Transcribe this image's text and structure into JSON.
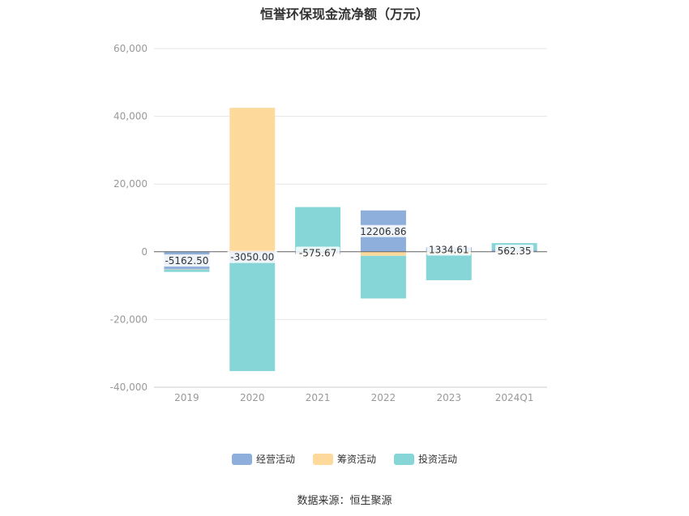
{
  "chart_data": {
    "type": "bar",
    "stacked": true,
    "title": "恒誉环保现金流净额（万元）",
    "categories": [
      "2019",
      "2020",
      "2021",
      "2022",
      "2023",
      "2024Q1"
    ],
    "series": [
      {
        "name": "经营活动",
        "color": "#8eaedb",
        "values": [
          -5162.5,
          -3050.0,
          -575.67,
          12206.86,
          1334.61,
          562.35
        ]
      },
      {
        "name": "筹资活动",
        "color": "#fdd99b",
        "values": [
          -100,
          42500,
          -300,
          -1200,
          -600,
          -50
        ]
      },
      {
        "name": "投资活动",
        "color": "#86d6d8",
        "values": [
          -700,
          -32200,
          13200,
          -12600,
          -7800,
          2000
        ]
      }
    ],
    "data_labels": [
      "-5162.50",
      "-3050.00",
      "-575.67",
      "12206.86",
      "1334.61",
      "562.35"
    ],
    "ylim": [
      -40000,
      60000
    ],
    "yticks": [
      "60,000",
      "40,000",
      "20,000",
      "0",
      "-20,000",
      "-40,000"
    ],
    "ytick_values": [
      60000,
      40000,
      20000,
      0,
      -20000,
      -40000
    ],
    "grid": true,
    "legend_position": "bottom"
  },
  "source": "数据来源：恒生聚源"
}
